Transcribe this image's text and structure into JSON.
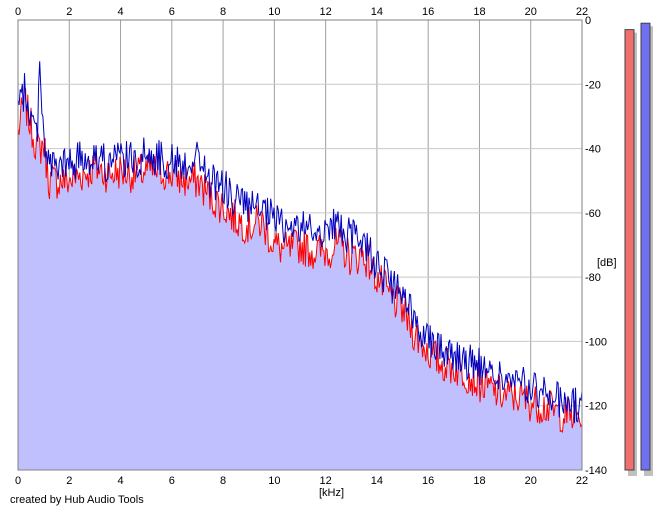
{
  "chart_data": {
    "type": "area",
    "xlabel": "[kHz]",
    "ylabel": "[dB]",
    "xlim": [
      0,
      22
    ],
    "ylim": [
      -140,
      0
    ],
    "x_ticks": [
      "0",
      "2",
      "4",
      "6",
      "8",
      "10",
      "12",
      "14",
      "16",
      "18",
      "20",
      "22"
    ],
    "y_ticks": [
      "0",
      "-20",
      "-40",
      "-60",
      "-80",
      "-100",
      "-120",
      "-140"
    ],
    "grid": true,
    "footer": "created by Hub Audio Tools",
    "series": [
      {
        "color": "#ff0000",
        "x": [
          0,
          0.25,
          0.5,
          0.75,
          0.85,
          1.0,
          1.2,
          1.5,
          2.0,
          2.5,
          3.0,
          3.5,
          4.0,
          4.5,
          5.0,
          5.5,
          6.0,
          6.5,
          7.0,
          7.5,
          8.0,
          8.5,
          9.0,
          9.5,
          10.0,
          10.5,
          11.0,
          11.5,
          12.0,
          12.5,
          13.0,
          13.5,
          14.0,
          14.5,
          15.0,
          15.5,
          16.0,
          16.5,
          17.0,
          17.5,
          18.0,
          18.5,
          19.0,
          19.5,
          20.0,
          20.5,
          21.0,
          21.5,
          22.0
        ],
        "values": [
          -35,
          -25,
          -33,
          -40,
          -40,
          -38,
          -50,
          -50,
          -50,
          -48,
          -46,
          -48,
          -47,
          -48,
          -47,
          -47,
          -48,
          -50,
          -50,
          -55,
          -58,
          -62,
          -64,
          -63,
          -70,
          -72,
          -70,
          -72,
          -72,
          -70,
          -74,
          -73,
          -80,
          -86,
          -90,
          -98,
          -103,
          -107,
          -108,
          -110,
          -113,
          -115,
          -117,
          -117,
          -119,
          -120,
          -122,
          -123,
          -124
        ]
      },
      {
        "color": "#0000c0",
        "x": [
          0,
          0.25,
          0.5,
          0.75,
          0.85,
          1.0,
          1.2,
          1.5,
          2.0,
          2.5,
          3.0,
          3.5,
          4.0,
          4.5,
          5.0,
          5.5,
          6.0,
          6.5,
          7.0,
          7.5,
          8.0,
          8.5,
          9.0,
          9.5,
          10.0,
          10.5,
          11.0,
          11.5,
          12.0,
          12.5,
          13.0,
          13.5,
          14.0,
          14.5,
          15.0,
          15.5,
          16.0,
          16.5,
          17.0,
          17.5,
          18.0,
          18.5,
          19.0,
          19.5,
          20.0,
          20.5,
          21.0,
          21.5,
          22.0
        ],
        "values": [
          -28,
          -22,
          -30,
          -36,
          -11,
          -36,
          -45,
          -46,
          -45,
          -43,
          -42,
          -45,
          -43,
          -44,
          -42,
          -43,
          -44,
          -45,
          -42,
          -50,
          -52,
          -56,
          -58,
          -60,
          -62,
          -65,
          -64,
          -66,
          -65,
          -64,
          -68,
          -68,
          -76,
          -82,
          -86,
          -94,
          -98,
          -102,
          -104,
          -106,
          -108,
          -110,
          -112,
          -113,
          -115,
          -116,
          -118,
          -119,
          -121
        ]
      }
    ],
    "fill_color": "#c0c0ff",
    "level_meters": [
      {
        "color": "#f07070",
        "value": -3
      },
      {
        "color": "#7070f0",
        "value": -1
      }
    ]
  }
}
